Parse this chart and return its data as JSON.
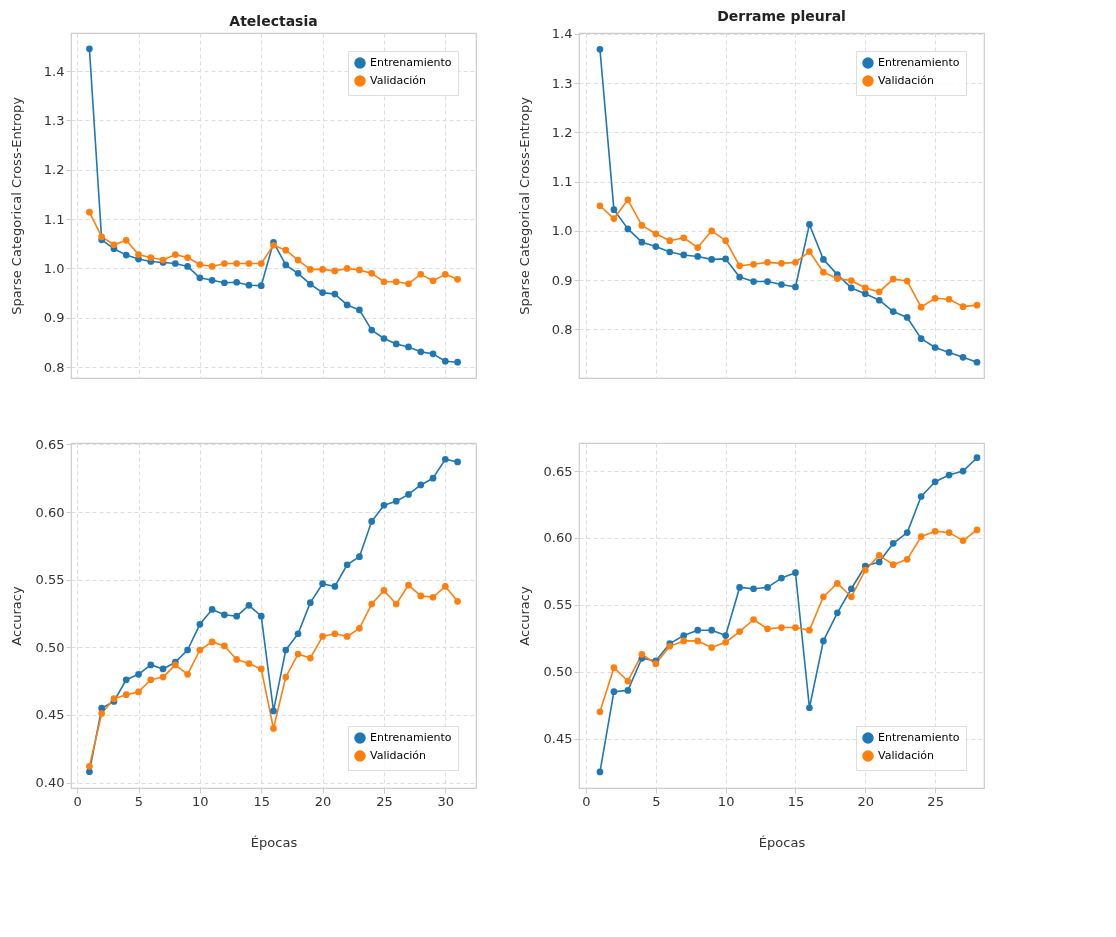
{
  "chart_data": [
    {
      "type": "line",
      "title": "Atelectasia",
      "ylabel": "Sparse Categorical Cross-Entropy",
      "x": [
        1,
        2,
        3,
        4,
        5,
        6,
        7,
        8,
        9,
        10,
        11,
        12,
        13,
        14,
        15,
        16,
        17,
        18,
        19,
        20,
        21,
        22,
        23,
        24,
        25,
        26,
        27,
        28,
        29,
        30,
        31
      ],
      "series": [
        {
          "name": "Entrenamiento",
          "color": "#1f77b4",
          "values": [
            1.445,
            1.058,
            1.04,
            1.027,
            1.019,
            1.014,
            1.012,
            1.01,
            1.004,
            0.981,
            0.976,
            0.971,
            0.972,
            0.966,
            0.965,
            1.053,
            1.007,
            0.99,
            0.968,
            0.951,
            0.948,
            0.926,
            0.916,
            0.875,
            0.858,
            0.847,
            0.841,
            0.831,
            0.827,
            0.812,
            0.81
          ]
        },
        {
          "name": "Validación",
          "color": "#ff7f0e",
          "values": [
            1.114,
            1.064,
            1.048,
            1.057,
            1.028,
            1.022,
            1.017,
            1.028,
            1.022,
            1.008,
            1.004,
            1.01,
            1.01,
            1.01,
            1.01,
            1.047,
            1.037,
            1.017,
            0.998,
            0.998,
            0.995,
            1.0,
            0.997,
            0.99,
            0.973,
            0.973,
            0.969,
            0.988,
            0.975,
            0.988,
            0.978
          ]
        }
      ],
      "xlim": [
        -0.5,
        32.5
      ],
      "ylim": [
        0.778,
        1.477
      ],
      "xticks": [
        0,
        5,
        10,
        15,
        20,
        25,
        30
      ],
      "yticks": [
        {
          "value": 0.8,
          "label": "0.8"
        },
        {
          "value": 0.9,
          "label": "0.9"
        },
        {
          "value": 1.0,
          "label": "1.0"
        },
        {
          "value": 1.1,
          "label": "1.1"
        },
        {
          "value": 1.2,
          "label": "1.2"
        },
        {
          "value": 1.3,
          "label": "1.3"
        },
        {
          "value": 1.4,
          "label": "1.4"
        }
      ],
      "grid": true,
      "legend": "top right",
      "marker": "circle",
      "tick_labels": "y"
    },
    {
      "type": "line",
      "title": "Derrame pleural",
      "ylabel": "Sparse Categorical Cross-Entropy",
      "x": [
        1,
        2,
        3,
        4,
        5,
        6,
        7,
        8,
        9,
        10,
        11,
        12,
        13,
        14,
        15,
        16,
        17,
        18,
        19,
        20,
        21,
        22,
        23,
        24,
        25,
        26,
        27,
        28
      ],
      "series": [
        {
          "name": "Entrenamiento",
          "color": "#1f77b4",
          "values": [
            1.369,
            1.043,
            1.004,
            0.977,
            0.968,
            0.957,
            0.951,
            0.948,
            0.942,
            0.943,
            0.906,
            0.897,
            0.897,
            0.891,
            0.886,
            1.013,
            0.942,
            0.911,
            0.884,
            0.872,
            0.859,
            0.836,
            0.824,
            0.781,
            0.763,
            0.753,
            0.743,
            0.733
          ]
        },
        {
          "name": "Validación",
          "color": "#ff7f0e",
          "values": [
            1.051,
            1.025,
            1.063,
            1.011,
            0.994,
            0.98,
            0.986,
            0.966,
            1.0,
            0.98,
            0.929,
            0.932,
            0.936,
            0.934,
            0.936,
            0.958,
            0.916,
            0.903,
            0.899,
            0.884,
            0.876,
            0.902,
            0.898,
            0.845,
            0.863,
            0.861,
            0.846,
            0.849
          ]
        }
      ],
      "xlim": [
        -0.5,
        28.5
      ],
      "ylim": [
        0.701,
        1.402
      ],
      "xticks": [
        0,
        5,
        10,
        15,
        20,
        25
      ],
      "yticks": [
        {
          "value": 0.8,
          "label": "0.8"
        },
        {
          "value": 0.9,
          "label": "0.9"
        },
        {
          "value": 1.0,
          "label": "1.0"
        },
        {
          "value": 1.1,
          "label": "1.1"
        },
        {
          "value": 1.2,
          "label": "1.2"
        },
        {
          "value": 1.3,
          "label": "1.3"
        },
        {
          "value": 1.4,
          "label": "1.4"
        }
      ],
      "grid": true,
      "legend": "top right",
      "marker": "circle",
      "tick_labels": "y"
    },
    {
      "type": "line",
      "xlabel": "Épocas",
      "ylabel": "Accuracy",
      "x": [
        1,
        2,
        3,
        4,
        5,
        6,
        7,
        8,
        9,
        10,
        11,
        12,
        13,
        14,
        15,
        16,
        17,
        18,
        19,
        20,
        21,
        22,
        23,
        24,
        25,
        26,
        27,
        28,
        29,
        30,
        31
      ],
      "series": [
        {
          "name": "Entrenamiento",
          "color": "#1f77b4",
          "values": [
            0.408,
            0.455,
            0.46,
            0.476,
            0.48,
            0.487,
            0.484,
            0.489,
            0.498,
            0.517,
            0.528,
            0.524,
            0.523,
            0.531,
            0.523,
            0.453,
            0.498,
            0.51,
            0.533,
            0.547,
            0.545,
            0.561,
            0.567,
            0.593,
            0.605,
            0.608,
            0.613,
            0.62,
            0.625,
            0.639,
            0.637
          ]
        },
        {
          "name": "Validación",
          "color": "#ff7f0e",
          "values": [
            0.412,
            0.451,
            0.462,
            0.465,
            0.467,
            0.476,
            0.478,
            0.487,
            0.48,
            0.498,
            0.504,
            0.501,
            0.491,
            0.488,
            0.484,
            0.44,
            0.478,
            0.495,
            0.492,
            0.508,
            0.51,
            0.508,
            0.514,
            0.532,
            0.542,
            0.532,
            0.546,
            0.538,
            0.537,
            0.545,
            0.534
          ]
        }
      ],
      "xlim": [
        -0.5,
        32.5
      ],
      "ylim": [
        0.396,
        0.651
      ],
      "xticks": [
        0,
        5,
        10,
        15,
        20,
        25,
        30
      ],
      "yticks": [
        {
          "value": 0.4,
          "label": "0.40"
        },
        {
          "value": 0.45,
          "label": "0.45"
        },
        {
          "value": 0.5,
          "label": "0.50"
        },
        {
          "value": 0.55,
          "label": "0.55"
        },
        {
          "value": 0.6,
          "label": "0.60"
        },
        {
          "value": 0.65,
          "label": "0.65"
        }
      ],
      "grid": true,
      "legend": "bottom right",
      "marker": "circle"
    },
    {
      "type": "line",
      "xlabel": "Épocas",
      "ylabel": "Accuracy",
      "x": [
        1,
        2,
        3,
        4,
        5,
        6,
        7,
        8,
        9,
        10,
        11,
        12,
        13,
        14,
        15,
        16,
        17,
        18,
        19,
        20,
        21,
        22,
        23,
        24,
        25,
        26,
        27,
        28
      ],
      "series": [
        {
          "name": "Entrenamiento",
          "color": "#1f77b4",
          "values": [
            0.425,
            0.485,
            0.486,
            0.51,
            0.508,
            0.521,
            0.527,
            0.531,
            0.531,
            0.527,
            0.563,
            0.562,
            0.563,
            0.57,
            0.574,
            0.473,
            0.523,
            0.544,
            0.562,
            0.579,
            0.582,
            0.596,
            0.604,
            0.631,
            0.642,
            0.647,
            0.65,
            0.66
          ]
        },
        {
          "name": "Validación",
          "color": "#ff7f0e",
          "values": [
            0.47,
            0.503,
            0.493,
            0.513,
            0.506,
            0.519,
            0.523,
            0.523,
            0.518,
            0.522,
            0.53,
            0.539,
            0.532,
            0.533,
            0.533,
            0.531,
            0.556,
            0.566,
            0.556,
            0.576,
            0.587,
            0.58,
            0.584,
            0.601,
            0.605,
            0.604,
            0.598,
            0.606
          ]
        }
      ],
      "xlim": [
        -0.5,
        28.5
      ],
      "ylim": [
        0.413,
        0.671
      ],
      "xticks": [
        0,
        5,
        10,
        15,
        20,
        25
      ],
      "yticks": [
        {
          "value": 0.45,
          "label": "0.45"
        },
        {
          "value": 0.5,
          "label": "0.50"
        },
        {
          "value": 0.55,
          "label": "0.55"
        },
        {
          "value": 0.6,
          "label": "0.60"
        },
        {
          "value": 0.65,
          "label": "0.65"
        }
      ],
      "grid": true,
      "legend": "bottom right",
      "marker": "circle"
    }
  ]
}
